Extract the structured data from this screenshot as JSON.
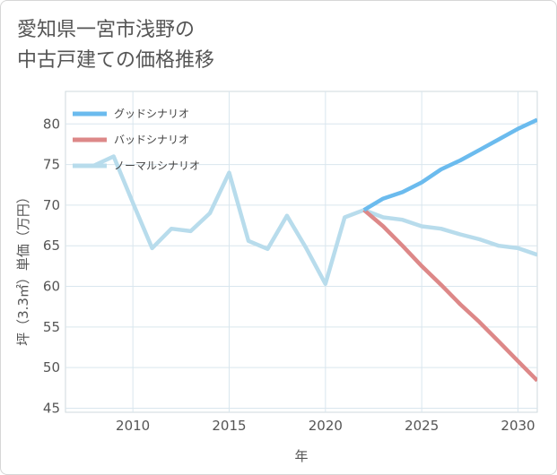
{
  "title": {
    "line1": "愛知県一宮市浅野の",
    "line2": "中古戸建ての価格推移"
  },
  "chart_data": {
    "type": "line",
    "xlabel": "年",
    "ylabel": "坪（3.3㎡）単価（万円）",
    "xlim": [
      2006.5,
      2031
    ],
    "ylim": [
      44.5,
      84
    ],
    "x_ticks": [
      2010,
      2015,
      2020,
      2025,
      2030
    ],
    "y_ticks": [
      45,
      50,
      55,
      60,
      65,
      70,
      75,
      80
    ],
    "grid": true,
    "legend_position": "top-left",
    "series": [
      {
        "name": "グッドシナリオ",
        "color": "#6bbbee",
        "x": [
          2022,
          2023,
          2024,
          2025,
          2026,
          2027,
          2028,
          2029,
          2030,
          2031
        ],
        "y": [
          69.4,
          70.8,
          71.6,
          72.8,
          74.4,
          75.5,
          76.8,
          78.1,
          79.4,
          80.5
        ]
      },
      {
        "name": "バッドシナリオ",
        "color": "#dd8888",
        "x": [
          2022,
          2023,
          2024,
          2025,
          2026,
          2027,
          2028,
          2029,
          2030,
          2031
        ],
        "y": [
          69.4,
          67.4,
          65.0,
          62.5,
          60.2,
          57.8,
          55.6,
          53.2,
          50.8,
          48.4
        ]
      },
      {
        "name": "ノーマルシナリオ",
        "color": "#b8dcec",
        "x": [
          2008,
          2009,
          2010,
          2011,
          2012,
          2013,
          2014,
          2015,
          2016,
          2017,
          2018,
          2019,
          2020,
          2021,
          2022,
          2023,
          2024,
          2025,
          2026,
          2027,
          2028,
          2029,
          2030,
          2031
        ],
        "y": [
          74.9,
          76.0,
          70.3,
          64.7,
          67.1,
          66.8,
          69.0,
          74.0,
          65.6,
          64.6,
          68.7,
          64.7,
          60.3,
          68.5,
          69.4,
          68.5,
          68.2,
          67.4,
          67.1,
          66.4,
          65.8,
          65.0,
          64.7,
          63.9
        ]
      }
    ]
  }
}
